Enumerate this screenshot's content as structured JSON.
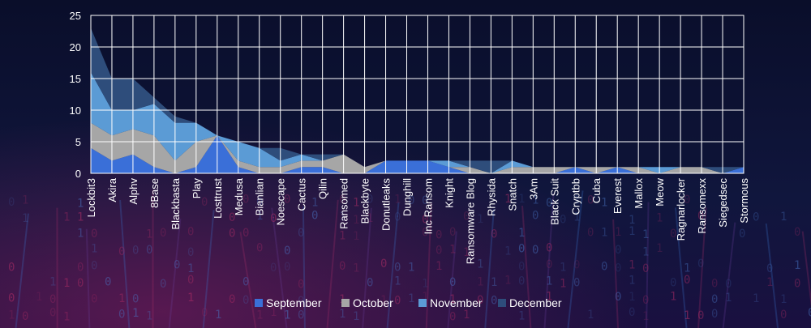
{
  "chart_data": {
    "type": "area",
    "stacked": true,
    "categories": [
      "Lockbit3",
      "Akira",
      "Alphv",
      "8Base",
      "Blackbasta",
      "Play",
      "Losttrust",
      "Medusa",
      "Bianlian",
      "Noescape",
      "Cactus",
      "Qilin",
      "Ransomed",
      "Blackbyte",
      "Donutleaks",
      "Dunghill",
      "Inc Ransom",
      "Knight",
      "Ransomware Blog",
      "Rhysida",
      "Snatch",
      "3Am",
      "Black Suit",
      "Cryptbb",
      "Cuba",
      "Everest",
      "Mallox",
      "Meow",
      "Ragnarlocker",
      "Ransomexx",
      "Siegedsec",
      "Stormous"
    ],
    "series": [
      {
        "name": "September",
        "color": "#3a6fd8",
        "values": [
          4,
          2,
          3,
          1,
          0,
          1,
          6,
          1,
          0,
          0,
          1,
          1,
          0,
          0,
          2,
          2,
          2,
          1,
          0,
          0,
          0,
          0,
          0,
          1,
          0,
          1,
          0,
          0,
          0,
          0,
          0,
          1
        ]
      },
      {
        "name": "October",
        "color": "#a6a6a6",
        "values": [
          4,
          4,
          4,
          5,
          2,
          4,
          0,
          1,
          1,
          1,
          1,
          1,
          3,
          1,
          0,
          0,
          0,
          0,
          1,
          0,
          1,
          1,
          1,
          0,
          1,
          0,
          1,
          0,
          1,
          1,
          0,
          0
        ]
      },
      {
        "name": "November",
        "color": "#5b9bd5",
        "values": [
          8,
          4,
          3,
          5,
          6,
          3,
          0,
          3,
          3,
          1,
          1,
          0,
          0,
          0,
          0,
          0,
          0,
          1,
          0,
          0,
          1,
          0,
          0,
          0,
          0,
          0,
          0,
          1,
          0,
          0,
          0,
          0
        ]
      },
      {
        "name": "December",
        "color": "#2e4d7b",
        "values": [
          7,
          5,
          5,
          1,
          1,
          0,
          0,
          0,
          0,
          2,
          0,
          1,
          0,
          0,
          0,
          0,
          0,
          0,
          1,
          2,
          0,
          0,
          0,
          0,
          0,
          0,
          0,
          0,
          0,
          0,
          1,
          0
        ]
      }
    ],
    "yticks": [
      0,
      5,
      10,
      15,
      20,
      25
    ],
    "ylim": [
      0,
      25
    ],
    "grid": true,
    "legend_position": "bottom"
  }
}
